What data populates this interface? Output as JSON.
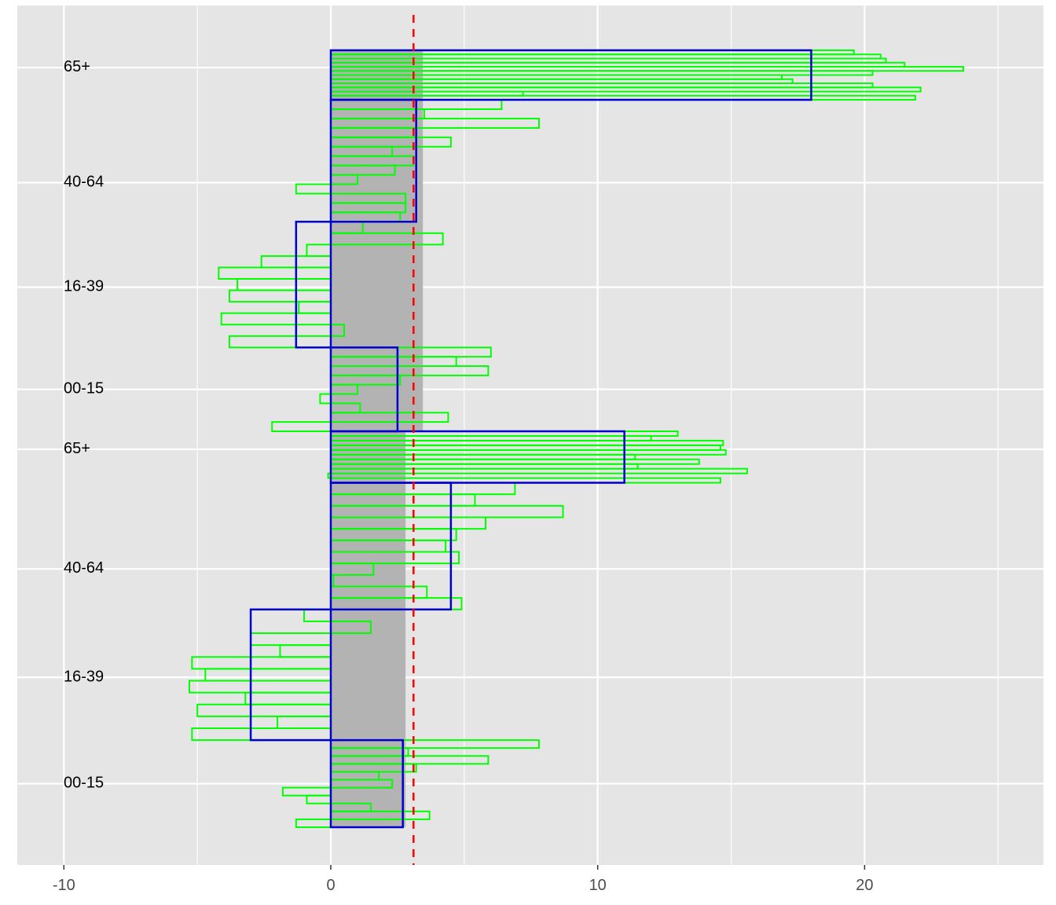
{
  "chart_data": {
    "type": "bar",
    "orientation": "horizontal",
    "xlim": [
      -11.8,
      26.2
    ],
    "x_ticks": [
      -10,
      0,
      10,
      20
    ],
    "x_tick_labels": [
      "-10",
      "0",
      "10",
      "20"
    ],
    "grid": true,
    "reference_line": {
      "x": 3.1,
      "color": "#ff0000",
      "style": "dashed"
    },
    "blocks": [
      {
        "overall_mean": 3.45,
        "groups": [
          {
            "label": "65+",
            "mean": 18.0,
            "values": [
              19.6,
              20.6,
              20.8,
              21.5,
              23.7,
              20.3,
              16.9,
              17.3,
              20.3,
              22.1,
              7.2,
              21.9
            ]
          },
          {
            "label": "40-64",
            "mean": 3.2,
            "values": [
              6.4,
              3.5,
              7.8,
              3.1,
              4.5,
              2.3,
              3.1,
              2.4,
              1.0,
              -1.3,
              2.8,
              2.8,
              2.6
            ]
          },
          {
            "label": "16-39",
            "mean": -1.3,
            "values": [
              1.2,
              4.2,
              -0.9,
              -2.6,
              -4.2,
              -3.5,
              -3.8,
              -1.2,
              -4.1,
              0.5,
              -3.8
            ]
          },
          {
            "label": "00-15",
            "mean": 2.5,
            "values": [
              6.0,
              4.7,
              5.9,
              2.6,
              1.0,
              -0.4,
              1.1,
              4.4,
              -2.2
            ]
          }
        ]
      },
      {
        "overall_mean": 2.8,
        "groups": [
          {
            "label": "65+",
            "mean": 11.0,
            "values": [
              13.0,
              12.0,
              14.7,
              14.6,
              14.8,
              11.4,
              13.8,
              11.5,
              15.6,
              -0.1,
              14.6
            ]
          },
          {
            "label": "40-64",
            "mean": 4.5,
            "values": [
              6.9,
              5.4,
              8.7,
              5.8,
              4.7,
              4.3,
              4.8,
              1.6,
              0.1,
              3.6,
              4.9
            ]
          },
          {
            "label": "16-39",
            "mean": -3.0,
            "values": [
              -1.0,
              1.5,
              -3.0,
              -1.9,
              -5.2,
              -4.7,
              -5.3,
              -3.2,
              -5.0,
              -2.0,
              -5.2
            ]
          },
          {
            "label": "00-15",
            "mean": 2.7,
            "values": [
              7.8,
              2.9,
              5.9,
              3.2,
              1.8,
              2.3,
              -1.8,
              -0.9,
              1.5,
              3.7,
              -1.3
            ]
          }
        ]
      }
    ],
    "colors": {
      "panel": "#e5e5e5",
      "grid": "#ffffff",
      "group_value_bar": "#00ff00",
      "group_mean_bar": "#0000cd",
      "overall_mean_band": "#b3b3b3",
      "reference_line": "#ff0000"
    }
  }
}
